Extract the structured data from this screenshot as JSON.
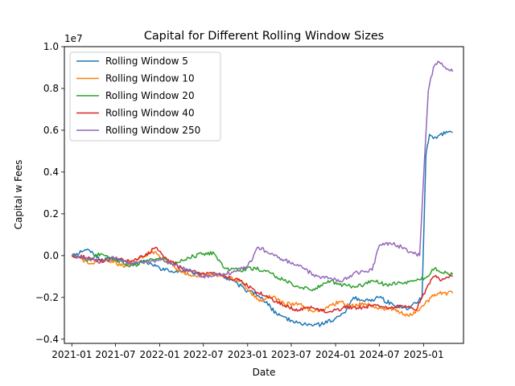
{
  "chart_data": {
    "type": "line",
    "title": "Capital for Different Rolling Window Sizes",
    "xlabel": "Date",
    "ylabel": "Capital w Fees",
    "y_offset_label": "1e7",
    "x_axis_type": "date",
    "xlim": [
      "2020-12-01",
      "2025-06-15"
    ],
    "ylim": [
      -0.42,
      1.0
    ],
    "y_scale_multiplier": 10000000,
    "x_ticks": [
      "2021-01",
      "2021-07",
      "2022-01",
      "2022-07",
      "2023-01",
      "2023-07",
      "2024-01",
      "2024-07",
      "2025-01"
    ],
    "y_ticks": [
      -0.4,
      -0.2,
      0.0,
      0.2,
      0.4,
      0.6,
      0.8,
      1.0
    ],
    "y_tick_labels": [
      "−0.4",
      "−0.2",
      "0.0",
      "0.2",
      "0.4",
      "0.6",
      "0.8",
      "1.0"
    ],
    "grid": false,
    "legend_position": "upper-left",
    "series": [
      {
        "name": "Rolling Window 5",
        "color": "#1f77b4",
        "points": [
          [
            "2021-01-01",
            0.0
          ],
          [
            "2021-02-15",
            0.02
          ],
          [
            "2021-03-10",
            0.03
          ],
          [
            "2021-05-01",
            -0.02
          ],
          [
            "2021-07-01",
            -0.01
          ],
          [
            "2021-09-01",
            -0.04
          ],
          [
            "2021-11-01",
            -0.03
          ],
          [
            "2022-01-01",
            -0.06
          ],
          [
            "2022-03-01",
            -0.08
          ],
          [
            "2022-05-01",
            -0.07
          ],
          [
            "2022-07-01",
            -0.1
          ],
          [
            "2022-09-01",
            -0.09
          ],
          [
            "2022-11-01",
            -0.12
          ],
          [
            "2023-01-01",
            -0.17
          ],
          [
            "2023-03-01",
            -0.2
          ],
          [
            "2023-05-01",
            -0.28
          ],
          [
            "2023-07-01",
            -0.31
          ],
          [
            "2023-09-01",
            -0.33
          ],
          [
            "2023-11-01",
            -0.33
          ],
          [
            "2024-01-01",
            -0.3
          ],
          [
            "2024-02-15",
            -0.26
          ],
          [
            "2024-03-15",
            -0.2
          ],
          [
            "2024-05-01",
            -0.22
          ],
          [
            "2024-07-01",
            -0.2
          ],
          [
            "2024-09-01",
            -0.24
          ],
          [
            "2024-11-01",
            -0.25
          ],
          [
            "2024-12-25",
            -0.2
          ],
          [
            "2025-01-10",
            0.48
          ],
          [
            "2025-01-25",
            0.58
          ],
          [
            "2025-02-10",
            0.56
          ],
          [
            "2025-03-10",
            0.58
          ],
          [
            "2025-05-01",
            0.59
          ]
        ]
      },
      {
        "name": "Rolling Window 10",
        "color": "#ff7f0e",
        "points": [
          [
            "2021-01-01",
            0.0
          ],
          [
            "2021-02-15",
            -0.02
          ],
          [
            "2021-04-01",
            -0.04
          ],
          [
            "2021-06-01",
            -0.02
          ],
          [
            "2021-08-01",
            -0.05
          ],
          [
            "2021-10-01",
            -0.02
          ],
          [
            "2021-12-01",
            0.02
          ],
          [
            "2022-02-01",
            -0.03
          ],
          [
            "2022-04-01",
            -0.08
          ],
          [
            "2022-06-01",
            -0.1
          ],
          [
            "2022-08-01",
            -0.09
          ],
          [
            "2022-10-01",
            -0.1
          ],
          [
            "2022-12-01",
            -0.12
          ],
          [
            "2023-01-15",
            -0.18
          ],
          [
            "2023-03-01",
            -0.22
          ],
          [
            "2023-04-01",
            -0.19
          ],
          [
            "2023-06-01",
            -0.23
          ],
          [
            "2023-08-01",
            -0.23
          ],
          [
            "2023-10-01",
            -0.27
          ],
          [
            "2023-12-01",
            -0.25
          ],
          [
            "2024-01-15",
            -0.22
          ],
          [
            "2024-03-01",
            -0.24
          ],
          [
            "2024-05-01",
            -0.23
          ],
          [
            "2024-07-01",
            -0.25
          ],
          [
            "2024-09-01",
            -0.26
          ],
          [
            "2024-11-01",
            -0.29
          ],
          [
            "2025-01-01",
            -0.24
          ],
          [
            "2025-02-01",
            -0.2
          ],
          [
            "2025-03-01",
            -0.18
          ],
          [
            "2025-05-01",
            -0.18
          ]
        ]
      },
      {
        "name": "Rolling Window 20",
        "color": "#2ca02c",
        "points": [
          [
            "2021-01-01",
            0.0
          ],
          [
            "2021-03-01",
            -0.02
          ],
          [
            "2021-05-01",
            0.01
          ],
          [
            "2021-07-01",
            -0.02
          ],
          [
            "2021-09-01",
            -0.05
          ],
          [
            "2021-11-01",
            -0.03
          ],
          [
            "2022-01-01",
            -0.01
          ],
          [
            "2022-03-01",
            -0.04
          ],
          [
            "2022-05-01",
            -0.01
          ],
          [
            "2022-07-01",
            0.01
          ],
          [
            "2022-08-15",
            0.01
          ],
          [
            "2022-10-01",
            -0.06
          ],
          [
            "2022-12-01",
            -0.07
          ],
          [
            "2023-02-01",
            -0.06
          ],
          [
            "2023-04-01",
            -0.08
          ],
          [
            "2023-06-01",
            -0.12
          ],
          [
            "2023-08-01",
            -0.15
          ],
          [
            "2023-10-01",
            -0.16
          ],
          [
            "2023-12-01",
            -0.12
          ],
          [
            "2024-02-01",
            -0.14
          ],
          [
            "2024-04-01",
            -0.15
          ],
          [
            "2024-06-01",
            -0.12
          ],
          [
            "2024-08-01",
            -0.14
          ],
          [
            "2024-10-01",
            -0.13
          ],
          [
            "2024-12-01",
            -0.12
          ],
          [
            "2025-01-15",
            -0.1
          ],
          [
            "2025-02-15",
            -0.06
          ],
          [
            "2025-03-15",
            -0.08
          ],
          [
            "2025-05-01",
            -0.09
          ]
        ]
      },
      {
        "name": "Rolling Window 40",
        "color": "#d62728",
        "points": [
          [
            "2021-01-01",
            0.0
          ],
          [
            "2021-03-01",
            -0.01
          ],
          [
            "2021-05-01",
            -0.03
          ],
          [
            "2021-07-01",
            -0.01
          ],
          [
            "2021-09-01",
            -0.03
          ],
          [
            "2021-11-01",
            0.0
          ],
          [
            "2021-12-15",
            0.04
          ],
          [
            "2022-02-01",
            -0.02
          ],
          [
            "2022-04-01",
            -0.06
          ],
          [
            "2022-06-01",
            -0.08
          ],
          [
            "2022-08-01",
            -0.08
          ],
          [
            "2022-10-01",
            -0.1
          ],
          [
            "2022-12-01",
            -0.12
          ],
          [
            "2023-02-01",
            -0.17
          ],
          [
            "2023-04-01",
            -0.2
          ],
          [
            "2023-06-01",
            -0.24
          ],
          [
            "2023-08-01",
            -0.26
          ],
          [
            "2023-10-01",
            -0.25
          ],
          [
            "2023-12-01",
            -0.27
          ],
          [
            "2024-02-01",
            -0.25
          ],
          [
            "2024-04-01",
            -0.25
          ],
          [
            "2024-06-01",
            -0.24
          ],
          [
            "2024-08-01",
            -0.25
          ],
          [
            "2024-10-01",
            -0.24
          ],
          [
            "2024-12-01",
            -0.26
          ],
          [
            "2025-01-15",
            -0.15
          ],
          [
            "2025-02-15",
            -0.1
          ],
          [
            "2025-03-15",
            -0.12
          ],
          [
            "2025-05-01",
            -0.1
          ]
        ]
      },
      {
        "name": "Rolling Window 250",
        "color": "#9467bd",
        "points": [
          [
            "2021-01-01",
            0.0
          ],
          [
            "2021-03-01",
            -0.01
          ],
          [
            "2021-05-01",
            -0.03
          ],
          [
            "2021-07-01",
            -0.01
          ],
          [
            "2021-09-01",
            -0.04
          ],
          [
            "2021-11-01",
            -0.03
          ],
          [
            "2022-01-01",
            -0.02
          ],
          [
            "2022-03-01",
            -0.04
          ],
          [
            "2022-05-01",
            -0.07
          ],
          [
            "2022-07-01",
            -0.1
          ],
          [
            "2022-09-01",
            -0.09
          ],
          [
            "2022-11-01",
            -0.08
          ],
          [
            "2023-01-01",
            -0.05
          ],
          [
            "2023-02-15",
            0.04
          ],
          [
            "2023-04-01",
            0.01
          ],
          [
            "2023-06-01",
            -0.02
          ],
          [
            "2023-08-01",
            -0.05
          ],
          [
            "2023-10-01",
            -0.09
          ],
          [
            "2023-12-01",
            -0.11
          ],
          [
            "2024-02-01",
            -0.12
          ],
          [
            "2024-04-01",
            -0.08
          ],
          [
            "2024-06-01",
            -0.07
          ],
          [
            "2024-07-01",
            0.05
          ],
          [
            "2024-08-15",
            0.06
          ],
          [
            "2024-10-01",
            0.04
          ],
          [
            "2024-12-15",
            0.0
          ],
          [
            "2025-01-05",
            0.48
          ],
          [
            "2025-01-20",
            0.79
          ],
          [
            "2025-02-10",
            0.9
          ],
          [
            "2025-03-01",
            0.93
          ],
          [
            "2025-04-01",
            0.9
          ],
          [
            "2025-05-01",
            0.88
          ]
        ]
      }
    ]
  }
}
